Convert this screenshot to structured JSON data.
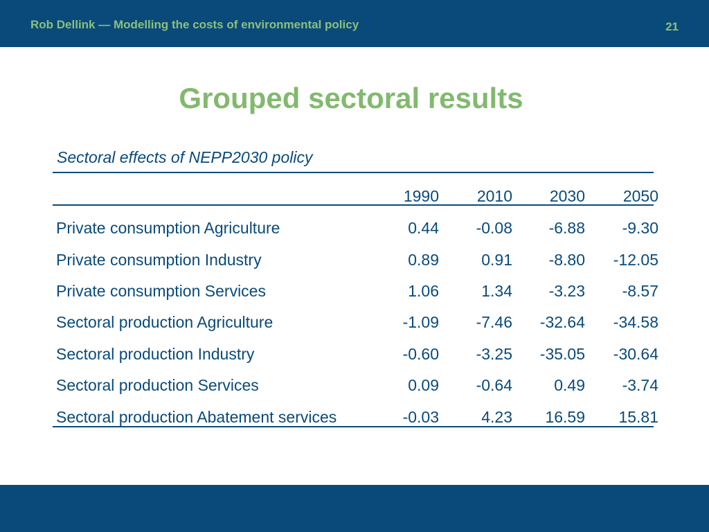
{
  "header": {
    "text": "Rob Dellink — Modelling the costs of environmental policy",
    "page_number": "21"
  },
  "slide": {
    "title": "Grouped sectoral results"
  },
  "table": {
    "caption": "Sectoral effects of NEPP2030 policy",
    "columns": [
      "1990",
      "2010",
      "2030",
      "2050"
    ],
    "rows": [
      {
        "label": "Private consumption Agriculture",
        "values": [
          "0.44",
          "-0.08",
          "-6.88",
          "-9.30"
        ]
      },
      {
        "label": "Private consumption Industry",
        "values": [
          "0.89",
          "0.91",
          "-8.80",
          "-12.05"
        ]
      },
      {
        "label": "Private consumption Services",
        "values": [
          "1.06",
          "1.34",
          "-3.23",
          "-8.57"
        ]
      },
      {
        "label": "Sectoral production Agriculture",
        "values": [
          "-1.09",
          "-7.46",
          "-32.64",
          "-34.58"
        ]
      },
      {
        "label": "Sectoral production Industry",
        "values": [
          "-0.60",
          "-3.25",
          "-35.05",
          "-30.64"
        ]
      },
      {
        "label": "Sectoral production Services",
        "values": [
          "0.09",
          "-0.64",
          "0.49",
          "-3.74"
        ]
      },
      {
        "label": "Sectoral production Abatement services",
        "values": [
          "-0.03",
          "4.23",
          "16.59",
          "15.81"
        ]
      }
    ]
  },
  "colors": {
    "bar": "#0a4a7a",
    "accent_green": "#82b96e",
    "text_blue": "#0a4a7a"
  }
}
